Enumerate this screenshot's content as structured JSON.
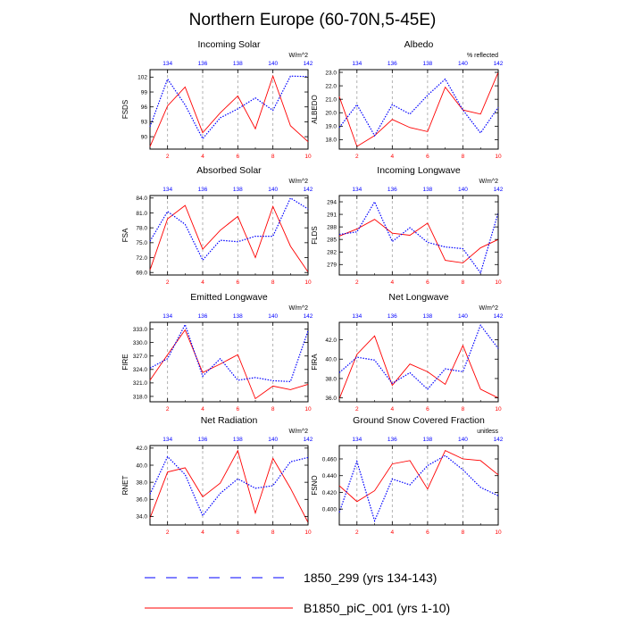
{
  "title": "Northern Europe (60-70N,5-45E)",
  "colors": {
    "series_a": "#0000ff",
    "series_b": "#ff0000",
    "grid": "#a0a0a0"
  },
  "legend": [
    {
      "label": "1850_299 (yrs 134-143)",
      "style": "dashed"
    },
    {
      "label": "B1850_piC_001 (yrs 1-10)",
      "style": "solid"
    }
  ],
  "chart_data": [
    {
      "type": "line",
      "title": "Incoming Solar",
      "ylabel": "FSDS",
      "units": "W/m^2",
      "x": [
        1,
        2,
        3,
        4,
        5,
        6,
        7,
        8,
        9,
        10
      ],
      "xlim": [
        1,
        10
      ],
      "bottom_ticks": [
        2,
        4,
        6,
        8,
        10
      ],
      "top_ticks": [
        134,
        136,
        138,
        140,
        142
      ],
      "ylim": [
        87.5,
        103.5
      ],
      "yticks": [
        "90",
        "93",
        "96",
        "99",
        "102"
      ],
      "series": [
        {
          "name": "1850_299 (yrs 134-143)",
          "values": [
            92,
            101.6,
            96.4,
            89.6,
            93.8,
            95.6,
            97.8,
            95.3,
            102.2,
            102.1
          ]
        },
        {
          "name": "B1850_piC_001 (yrs 1-10)",
          "values": [
            88,
            96.2,
            100,
            90.8,
            94.8,
            98.2,
            91.6,
            102.2,
            92.2,
            89
          ]
        }
      ]
    },
    {
      "type": "line",
      "title": "Albedo",
      "ylabel": "ALBEDO",
      "units": "% reflected",
      "x": [
        1,
        2,
        3,
        4,
        5,
        6,
        7,
        8,
        9,
        10
      ],
      "xlim": [
        1,
        10
      ],
      "bottom_ticks": [
        2,
        4,
        6,
        8,
        10
      ],
      "top_ticks": [
        134,
        136,
        138,
        140,
        142
      ],
      "ylim": [
        17.3,
        23.2
      ],
      "yticks": [
        "18.0",
        "19.0",
        "20.0",
        "21.0",
        "22.0",
        "23.0"
      ],
      "series": [
        {
          "name": "1850_299 (yrs 134-143)",
          "values": [
            18.9,
            20.6,
            18.3,
            20.6,
            19.9,
            21.3,
            22.5,
            20.2,
            18.5,
            20.4
          ]
        },
        {
          "name": "B1850_piC_001 (yrs 1-10)",
          "values": [
            21.2,
            17.5,
            18.3,
            19.5,
            18.9,
            18.6,
            21.9,
            20.2,
            19.9,
            23
          ]
        }
      ]
    },
    {
      "type": "line",
      "title": "Absorbed Solar",
      "ylabel": "FSA",
      "units": "W/m^2",
      "x": [
        1,
        2,
        3,
        4,
        5,
        6,
        7,
        8,
        9,
        10
      ],
      "xlim": [
        1,
        10
      ],
      "bottom_ticks": [
        2,
        4,
        6,
        8,
        10
      ],
      "top_ticks": [
        134,
        136,
        138,
        140,
        142
      ],
      "ylim": [
        68.5,
        84.5
      ],
      "yticks": [
        "69.0",
        "72.0",
        "75.0",
        "78.0",
        "81.0",
        "84.0"
      ],
      "series": [
        {
          "name": "1850_299 (yrs 134-143)",
          "values": [
            75.3,
            81.3,
            78.7,
            71.5,
            75.5,
            75.2,
            76.3,
            76.3,
            84,
            81.8
          ]
        },
        {
          "name": "B1850_piC_001 (yrs 1-10)",
          "values": [
            69.5,
            79.8,
            82.5,
            73.7,
            77.5,
            80.3,
            72,
            82.3,
            74.3,
            69.1
          ]
        }
      ]
    },
    {
      "type": "line",
      "title": "Incoming Longwave",
      "ylabel": "FLDS",
      "units": "W/m^2",
      "x": [
        1,
        2,
        3,
        4,
        5,
        6,
        7,
        8,
        9,
        10
      ],
      "xlim": [
        1,
        10
      ],
      "bottom_ticks": [
        2,
        4,
        6,
        8,
        10
      ],
      "top_ticks": [
        134,
        136,
        138,
        140,
        142
      ],
      "ylim": [
        276.5,
        295.5
      ],
      "yticks": [
        "279",
        "282",
        "285",
        "288",
        "291",
        "294"
      ],
      "series": [
        {
          "name": "1850_299 (yrs 134-143)",
          "values": [
            286.2,
            286.8,
            294,
            284.5,
            287.8,
            284.3,
            283.2,
            282.8,
            277,
            291.4
          ]
        },
        {
          "name": "B1850_piC_001 (yrs 1-10)",
          "values": [
            285.8,
            287.5,
            289.8,
            286.5,
            286,
            288.9,
            280,
            279.4,
            283,
            285
          ]
        }
      ]
    },
    {
      "type": "line",
      "title": "Emitted Longwave",
      "ylabel": "FIRE",
      "units": "W/m^2",
      "x": [
        1,
        2,
        3,
        4,
        5,
        6,
        7,
        8,
        9,
        10
      ],
      "xlim": [
        1,
        10
      ],
      "bottom_ticks": [
        2,
        4,
        6,
        8,
        10
      ],
      "top_ticks": [
        134,
        136,
        138,
        140,
        142
      ],
      "ylim": [
        316.8,
        334.5
      ],
      "yticks": [
        "318.0",
        "321.0",
        "324.0",
        "327.0",
        "330.0",
        "333.0"
      ],
      "series": [
        {
          "name": "1850_299 (yrs 134-143)",
          "values": [
            324.3,
            326.4,
            334,
            322.5,
            326.4,
            321.6,
            322.2,
            321.5,
            321.3,
            332.6
          ]
        },
        {
          "name": "B1850_piC_001 (yrs 1-10)",
          "values": [
            321.6,
            327.3,
            332.8,
            323.3,
            325.2,
            327.3,
            317.5,
            320.3,
            319.5,
            320.7
          ]
        }
      ]
    },
    {
      "type": "line",
      "title": "Net Longwave",
      "ylabel": "FIRA",
      "units": "W/m^2",
      "x": [
        1,
        2,
        3,
        4,
        5,
        6,
        7,
        8,
        9,
        10
      ],
      "xlim": [
        1,
        10
      ],
      "bottom_ticks": [
        2,
        4,
        6,
        8,
        10
      ],
      "top_ticks": [
        134,
        136,
        138,
        140,
        142
      ],
      "ylim": [
        35.6,
        43.8
      ],
      "yticks": [
        "36.0",
        "38.0",
        "40.0",
        "42.0"
      ],
      "series": [
        {
          "name": "1850_299 (yrs 134-143)",
          "values": [
            38.6,
            40.2,
            39.9,
            37.5,
            38.6,
            36.9,
            39,
            38.7,
            43.5,
            41.1
          ]
        },
        {
          "name": "B1850_piC_001 (yrs 1-10)",
          "values": [
            35.9,
            40.5,
            42.4,
            37.3,
            39.5,
            38.7,
            37.4,
            41.4,
            36.9,
            36
          ]
        }
      ]
    },
    {
      "type": "line",
      "title": "Net Radiation",
      "ylabel": "RNET",
      "units": "W/m^2",
      "x": [
        1,
        2,
        3,
        4,
        5,
        6,
        7,
        8,
        9,
        10
      ],
      "xlim": [
        1,
        10
      ],
      "bottom_ticks": [
        2,
        4,
        6,
        8,
        10
      ],
      "top_ticks": [
        134,
        136,
        138,
        140,
        142
      ],
      "ylim": [
        33,
        42.3
      ],
      "yticks": [
        "34.0",
        "36.0",
        "38.0",
        "40.0",
        "42.0"
      ],
      "series": [
        {
          "name": "1850_299 (yrs 134-143)",
          "values": [
            36.6,
            41,
            38.9,
            34.1,
            36.7,
            38.4,
            37.3,
            37.6,
            40.4,
            40.9
          ]
        },
        {
          "name": "B1850_piC_001 (yrs 1-10)",
          "values": [
            33.8,
            39.2,
            39.7,
            36.3,
            37.9,
            41.7,
            34.4,
            40.8,
            37.3,
            33.3
          ]
        }
      ]
    },
    {
      "type": "line",
      "title": "Ground Snow Covered Fraction",
      "ylabel": "FSNO",
      "units": "unitless",
      "x": [
        1,
        2,
        3,
        4,
        5,
        6,
        7,
        8,
        9,
        10
      ],
      "xlim": [
        1,
        10
      ],
      "bottom_ticks": [
        2,
        4,
        6,
        8,
        10
      ],
      "top_ticks": [
        134,
        136,
        138,
        140,
        142
      ],
      "ylim": [
        0.381,
        0.476
      ],
      "yticks": [
        "0.400",
        "0.420",
        "0.440",
        "0.460"
      ],
      "series": [
        {
          "name": "1850_299 (yrs 134-143)",
          "values": [
            0.396,
            0.457,
            0.386,
            0.436,
            0.429,
            0.452,
            0.464,
            0.447,
            0.426,
            0.416
          ]
        },
        {
          "name": "B1850_piC_001 (yrs 1-10)",
          "values": [
            0.428,
            0.409,
            0.422,
            0.454,
            0.458,
            0.424,
            0.47,
            0.46,
            0.458,
            0.441
          ]
        }
      ]
    }
  ]
}
